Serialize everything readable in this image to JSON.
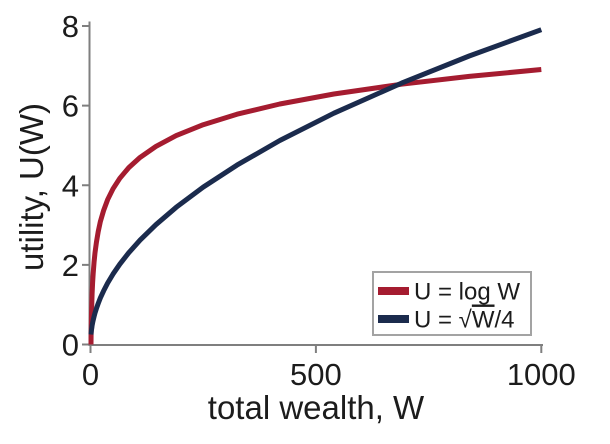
{
  "style": {
    "background": "#FFFFFF",
    "axis_color": "#7F7F7F",
    "text_color": "#1C1C1C",
    "legend_border_color": "#A3A3A3"
  },
  "chart_data": {
    "type": "line",
    "title": "",
    "xlabel": "total wealth, W",
    "ylabel": "utility, U(W)",
    "xlim": [
      0,
      1000
    ],
    "ylim": [
      0,
      8
    ],
    "xticks": [
      0,
      500,
      1000
    ],
    "xtick_labels": [
      "0",
      "500",
      "1000"
    ],
    "yticks": [
      0,
      2,
      4,
      6,
      8
    ],
    "ytick_labels": [
      "0",
      "2",
      "4",
      "6",
      "8"
    ],
    "grid": false,
    "tick_direction": "out",
    "legend": {
      "position": "lower-right",
      "border": true
    },
    "x_samples": [
      1,
      1.3,
      1.7,
      2.2,
      2.8,
      3.6,
      4.7,
      6,
      8,
      10,
      13,
      17,
      22,
      29,
      38,
      50,
      65,
      85,
      110,
      145,
      190,
      250,
      325,
      420,
      540,
      690,
      840,
      1000
    ],
    "series": [
      {
        "name": "U = log W",
        "color": "#A51C30",
        "line_width": 5,
        "values": [
          0,
          0.262,
          0.531,
          0.788,
          1.03,
          1.281,
          1.548,
          1.792,
          2.079,
          2.303,
          2.565,
          2.833,
          3.091,
          3.367,
          3.638,
          3.912,
          4.174,
          4.443,
          4.7,
          4.977,
          5.247,
          5.521,
          5.784,
          6.04,
          6.292,
          6.537,
          6.733,
          6.908
        ]
      },
      {
        "name": "U = √W/4",
        "color": "#1B2B4D",
        "line_width": 5,
        "values": [
          0.25,
          0.285,
          0.326,
          0.371,
          0.418,
          0.474,
          0.542,
          0.612,
          0.707,
          0.791,
          0.901,
          1.031,
          1.173,
          1.346,
          1.541,
          1.768,
          2.016,
          2.305,
          2.622,
          3.01,
          3.446,
          3.953,
          4.507,
          5.123,
          5.809,
          6.567,
          7.246,
          7.906
        ]
      }
    ]
  }
}
